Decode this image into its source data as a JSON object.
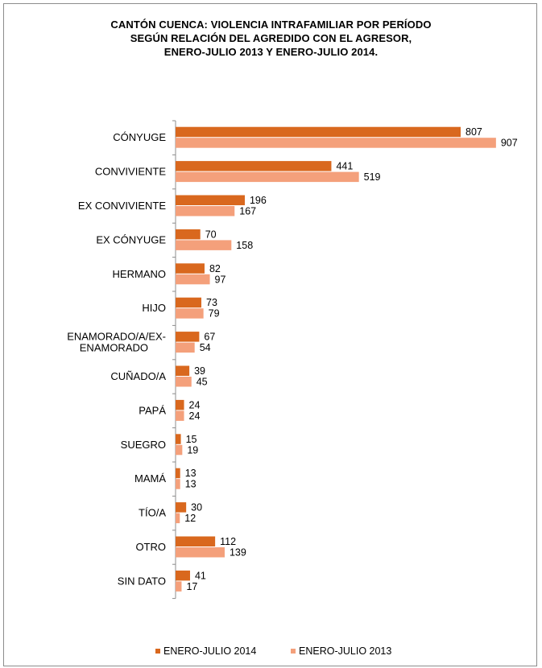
{
  "title_lines": [
    "CANTÓN CUENCA: VIOLENCIA INTRAFAMILIAR  POR PERÍODO",
    "SEGÚN RELACIÓN DEL AGREDIDO CON EL AGRESOR,",
    "ENERO-JULIO 2013 Y ENERO-JULIO 2014."
  ],
  "colors": {
    "series_2014": "#d9681e",
    "series_2013": "#f4a07b"
  },
  "chart_data": {
    "type": "bar",
    "orientation": "horizontal",
    "title": "CANTÓN CUENCA: VIOLENCIA INTRAFAMILIAR  POR PERÍODO SEGÚN RELACIÓN DEL AGREDIDO CON EL AGRESOR, ENERO-JULIO 2013 Y ENERO-JULIO 2014.",
    "categories": [
      "CÓNYUGE",
      "CONVIVIENTE",
      "EX CONVIVIENTE",
      "EX CÓNYUGE",
      "HERMANO",
      "HIJO",
      "ENAMORADO/A/EX-ENAMORADO",
      "CUÑADO/A",
      "PAPÁ",
      "SUEGRO",
      "MAMÁ",
      "TÍO/A",
      "OTRO",
      "SIN DATO"
    ],
    "series": [
      {
        "name": "ENERO-JULIO 2014",
        "values": [
          807,
          441,
          196,
          70,
          82,
          73,
          67,
          39,
          24,
          15,
          13,
          30,
          112,
          41
        ]
      },
      {
        "name": "ENERO-JULIO 2013",
        "values": [
          907,
          519,
          167,
          158,
          97,
          79,
          54,
          45,
          24,
          19,
          13,
          12,
          139,
          17
        ]
      }
    ],
    "data_labels": true,
    "xlim": [
      0,
      1000
    ],
    "grid": false,
    "legend_position": "bottom"
  }
}
